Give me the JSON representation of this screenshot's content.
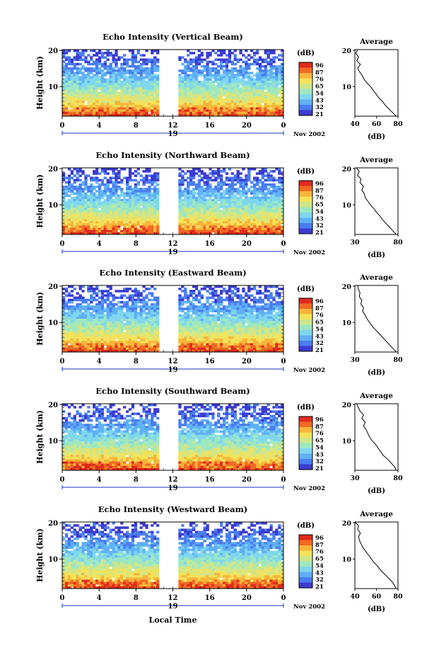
{
  "colors": {
    "scale": [
      "#3b3bd0",
      "#4a7df0",
      "#5fb0f5",
      "#7fd7ee",
      "#9ee8c0",
      "#cfe68a",
      "#f3e25a",
      "#f7b53a",
      "#f06a24",
      "#e02a1e"
    ],
    "blank": "#ffffff",
    "line": "#000000",
    "axis_blue": "#1f2fbf"
  },
  "common": {
    "ylabel": "Height (km)",
    "xticks": [
      "0",
      "4",
      "8",
      "12",
      "16",
      "20",
      "0"
    ],
    "date_label": "19",
    "date_suffix": "Nov 2002",
    "colorbar_unit": "(dB)",
    "colorbar_ticks": [
      "96",
      "87",
      "76",
      "65",
      "54",
      "43",
      "32",
      "21"
    ],
    "avg_title": "Average",
    "avg_xlabel": "(dB)",
    "main_yticks": [
      "20",
      "10"
    ],
    "avg_yticks": [
      "20",
      "10"
    ],
    "bottom_xlabel": "Local Time"
  },
  "chart_data": [
    {
      "type": "heatmap",
      "title": "Echo Intensity (Vertical Beam)",
      "ylabel": "Height (km)",
      "xlim_hours": [
        0,
        24
      ],
      "ylim_km": [
        2,
        20
      ],
      "colorbar_range_db": [
        21,
        96
      ],
      "data_gap_hours": [
        10.5,
        12.5
      ],
      "average_profile": {
        "title": "Average",
        "xlabel": "(dB)",
        "xticks": [
          "40",
          "60",
          "80"
        ],
        "xlim": [
          35,
          82
        ],
        "height_km": [
          2,
          3,
          4,
          5,
          6,
          7,
          8,
          9,
          10,
          11,
          12,
          13,
          14,
          15,
          16,
          17,
          18,
          19,
          20
        ],
        "value_db": [
          80,
          76,
          72,
          68,
          65,
          61,
          58,
          55,
          52,
          48,
          45,
          43,
          40,
          38,
          41,
          37,
          39,
          36,
          38
        ]
      }
    },
    {
      "type": "heatmap",
      "title": "Echo Intensity (Northward Beam)",
      "ylabel": "Height (km)",
      "xlim_hours": [
        0,
        24
      ],
      "ylim_km": [
        2,
        20
      ],
      "colorbar_range_db": [
        21,
        96
      ],
      "data_gap_hours": [
        10.5,
        12.5
      ],
      "average_profile": {
        "title": "Average",
        "xlabel": "(dB)",
        "xticks": [
          "30",
          "80"
        ],
        "xlim": [
          30,
          80
        ],
        "height_km": [
          2,
          3,
          4,
          5,
          6,
          7,
          8,
          9,
          10,
          11,
          12,
          13,
          14,
          15,
          16,
          17,
          18,
          19,
          20
        ],
        "value_db": [
          78,
          74,
          70,
          66,
          62,
          59,
          55,
          52,
          48,
          45,
          42,
          41,
          38,
          40,
          36,
          37,
          33,
          35,
          32
        ]
      }
    },
    {
      "type": "heatmap",
      "title": "Echo Intensity (Eastward Beam)",
      "ylabel": "Height (km)",
      "xlim_hours": [
        0,
        24
      ],
      "ylim_km": [
        2,
        20
      ],
      "colorbar_range_db": [
        21,
        96
      ],
      "data_gap_hours": [
        10.5,
        12.5
      ],
      "average_profile": {
        "title": "Average",
        "xlabel": "(dB)",
        "xticks": [
          "30",
          "80"
        ],
        "xlim": [
          30,
          80
        ],
        "height_km": [
          2,
          3,
          4,
          5,
          6,
          7,
          8,
          9,
          10,
          11,
          12,
          13,
          14,
          15,
          16,
          17,
          18,
          19,
          20
        ],
        "value_db": [
          78,
          74,
          70,
          66,
          62,
          58,
          54,
          50,
          47,
          44,
          42,
          39,
          40,
          37,
          38,
          35,
          36,
          34,
          33
        ]
      }
    },
    {
      "type": "heatmap",
      "title": "Echo Intensity (Southward Beam)",
      "ylabel": "Height (km)",
      "xlim_hours": [
        0,
        24
      ],
      "ylim_km": [
        2,
        20
      ],
      "colorbar_range_db": [
        21,
        96
      ],
      "data_gap_hours": [
        10.5,
        12.5
      ],
      "average_profile": {
        "title": "Average",
        "xlabel": "(dB)",
        "xticks": [
          "30",
          "80"
        ],
        "xlim": [
          30,
          80
        ],
        "height_km": [
          2,
          3,
          4,
          5,
          6,
          7,
          8,
          9,
          10,
          11,
          12,
          13,
          14,
          15,
          16,
          17,
          18,
          19,
          20
        ],
        "value_db": [
          78,
          76,
          72,
          68,
          63,
          60,
          57,
          54,
          50,
          47,
          45,
          43,
          40,
          42,
          38,
          40,
          36,
          34,
          32
        ]
      }
    },
    {
      "type": "heatmap",
      "title": "Echo Intensity (Westward Beam)",
      "ylabel": "Height (km)",
      "xlim_hours": [
        0,
        24
      ],
      "ylim_km": [
        2,
        20
      ],
      "colorbar_range_db": [
        21,
        96
      ],
      "data_gap_hours": [
        10.5,
        12.5
      ],
      "average_profile": {
        "title": "Average",
        "xlabel": "(dB)",
        "xticks": [
          "40",
          "60",
          "80"
        ],
        "xlim": [
          33,
          80
        ],
        "height_km": [
          2,
          3,
          4,
          5,
          6,
          7,
          8,
          9,
          10,
          11,
          12,
          13,
          14,
          15,
          16,
          17,
          18,
          19,
          20
        ],
        "value_db": [
          78,
          76,
          73,
          69,
          65,
          61,
          58,
          54,
          51,
          48,
          45,
          42,
          40,
          38,
          37,
          39,
          36,
          37,
          33
        ]
      }
    }
  ]
}
